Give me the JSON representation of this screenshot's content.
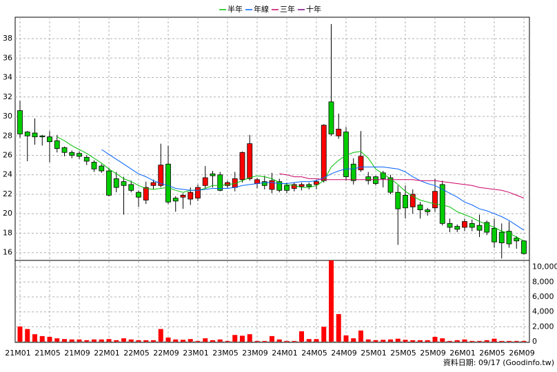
{
  "chart_data": {
    "type": "candlestick",
    "categories": [
      "21M01",
      null,
      null,
      null,
      "21M05",
      null,
      null,
      null,
      "21M09",
      null,
      null,
      null,
      "22M01",
      null,
      null,
      null,
      "22M05",
      null,
      null,
      null,
      "22M09",
      null,
      null,
      null,
      "23M01",
      null,
      null,
      null,
      "23M05",
      null,
      null,
      null,
      "23M09",
      null,
      null,
      null,
      "24M01",
      null,
      null,
      null,
      "24M05",
      null,
      null,
      null,
      "24M09",
      null,
      null,
      null,
      "25M01",
      null,
      null,
      null,
      "25M05",
      null,
      null,
      null,
      "25M09",
      null,
      null,
      null,
      "26M01",
      null,
      null,
      null,
      "26M05",
      null,
      null,
      null,
      "26M09"
    ],
    "open": [
      30.6,
      28.4,
      28.3,
      28.0,
      27.9,
      27.5,
      26.8,
      26.3,
      26.2,
      25.8,
      25.3,
      24.9,
      24.4,
      23.6,
      23.3,
      23.0,
      22.2,
      21.4,
      22.9,
      22.9,
      25.1,
      21.6,
      21.7,
      21.5,
      21.6,
      22.9,
      24.1,
      24.0,
      22.9,
      22.7,
      23.5,
      23.6,
      23.1,
      23.3,
      22.5,
      23.3,
      22.9,
      22.6,
      22.8,
      23.0,
      23.0,
      23.4,
      31.5,
      28.0,
      28.4,
      25.1,
      24.5,
      23.8,
      23.8,
      24.2,
      23.7,
      22.2,
      21.9,
      20.7,
      20.9,
      20.4,
      20.6,
      23.0,
      19.0,
      18.7,
      18.6,
      19.0,
      18.8,
      19.1,
      18.5,
      18.1,
      18.2,
      17.5,
      17.2
    ],
    "high": [
      31.6,
      28.5,
      29.8,
      28.1,
      28.5,
      28.1,
      26.9,
      26.5,
      26.4,
      26.0,
      25.5,
      25.1,
      24.7,
      24.3,
      23.8,
      23.4,
      22.4,
      23.3,
      23.5,
      27.2,
      27.0,
      21.8,
      22.1,
      22.7,
      23.0,
      24.9,
      24.4,
      24.3,
      23.4,
      24.3,
      26.4,
      28.1,
      23.7,
      23.9,
      24.2,
      23.6,
      23.2,
      23.2,
      23.2,
      23.2,
      23.5,
      29.2,
      39.5,
      30.3,
      28.9,
      25.7,
      28.5,
      24.3,
      23.9,
      24.4,
      24.0,
      22.9,
      22.9,
      22.5,
      21.2,
      20.6,
      23.6,
      23.4,
      19.5,
      18.9,
      19.5,
      19.4,
      19.9,
      19.3,
      19.5,
      19.0,
      19.2,
      17.7,
      17.3
    ],
    "low": [
      27.8,
      25.4,
      27.1,
      27.0,
      25.3,
      26.3,
      25.9,
      25.7,
      25.6,
      25.0,
      24.3,
      24.2,
      21.8,
      22.2,
      19.9,
      22.2,
      20.7,
      21.0,
      22.5,
      22.7,
      21.0,
      20.2,
      20.5,
      20.9,
      21.3,
      22.6,
      22.7,
      22.3,
      22.6,
      22.3,
      23.2,
      23.4,
      22.6,
      22.5,
      22.1,
      22.2,
      22.1,
      22.3,
      22.4,
      22.5,
      22.5,
      23.2,
      28.0,
      27.7,
      23.4,
      23.0,
      24.3,
      23.0,
      22.9,
      22.7,
      22.0,
      16.8,
      19.5,
      20.0,
      19.5,
      19.8,
      20.2,
      18.8,
      18.1,
      18.1,
      18.2,
      18.2,
      17.6,
      17.8,
      16.5,
      15.4,
      16.5,
      16.4,
      15.8
    ],
    "close": [
      28.2,
      28.0,
      27.9,
      27.9,
      27.4,
      26.7,
      26.3,
      26.0,
      25.9,
      25.4,
      24.6,
      24.4,
      21.9,
      22.7,
      22.9,
      22.4,
      21.7,
      22.7,
      23.2,
      25.0,
      21.2,
      21.3,
      21.9,
      22.2,
      22.7,
      23.7,
      23.9,
      22.4,
      23.2,
      23.6,
      26.3,
      27.2,
      23.5,
      22.9,
      23.4,
      22.4,
      22.4,
      23.0,
      23.0,
      22.8,
      23.3,
      29.1,
      28.2,
      28.7,
      23.8,
      23.4,
      25.9,
      23.4,
      23.1,
      23.6,
      22.2,
      20.5,
      20.6,
      22.0,
      20.4,
      20.2,
      22.3,
      19.0,
      18.6,
      18.4,
      19.2,
      18.6,
      18.3,
      18.1,
      17.1,
      17.0,
      16.9,
      17.2,
      15.9
    ],
    "up_color": "#ff0000",
    "down_color": "#00cc00",
    "ylim": [
      15.2,
      40.2
    ],
    "yticks": [
      16,
      18,
      20,
      22,
      24,
      26,
      28,
      30,
      32,
      34,
      36,
      38
    ],
    "grid": true,
    "ma_series": [
      {
        "name": "半年",
        "color": "#00c000",
        "values": [
          null,
          null,
          null,
          null,
          null,
          27.9,
          27.5,
          27.0,
          26.6,
          26.2,
          25.7,
          25.2,
          24.6,
          24.1,
          23.6,
          23.3,
          22.9,
          22.6,
          22.5,
          22.6,
          22.7,
          22.4,
          22.2,
          22.4,
          22.4,
          22.6,
          22.9,
          22.9,
          23.0,
          23.1,
          23.4,
          23.7,
          23.9,
          23.8,
          23.6,
          23.2,
          23.0,
          22.9,
          22.7,
          22.7,
          22.9,
          23.4,
          24.8,
          25.5,
          26.0,
          26.3,
          26.4,
          25.7,
          24.6,
          24.1,
          23.6,
          23.0,
          22.3,
          21.8,
          21.4,
          21.2,
          21.0,
          20.9,
          20.7,
          20.2,
          19.9,
          19.6,
          19.2,
          18.9,
          18.6,
          18.2,
          18.0,
          17.6,
          17.2
        ]
      },
      {
        "name": "年線",
        "color": "#0060ff",
        "values": [
          null,
          null,
          null,
          null,
          null,
          null,
          null,
          null,
          null,
          null,
          null,
          26.6,
          26.1,
          25.6,
          25.1,
          24.6,
          24.1,
          23.8,
          23.4,
          23.1,
          22.9,
          22.6,
          22.5,
          22.4,
          22.4,
          22.5,
          22.6,
          22.6,
          22.6,
          22.7,
          22.9,
          23.0,
          23.1,
          23.2,
          23.2,
          23.1,
          23.1,
          23.2,
          23.3,
          23.3,
          23.4,
          23.7,
          24.1,
          24.4,
          24.6,
          24.6,
          24.8,
          24.8,
          24.8,
          24.8,
          24.7,
          24.6,
          24.3,
          23.8,
          23.4,
          23.1,
          22.9,
          22.5,
          22.1,
          21.7,
          21.2,
          20.9,
          20.5,
          20.3,
          20.0,
          19.7,
          19.3,
          18.8,
          18.3
        ]
      },
      {
        "name": "三年",
        "color": "#cc0066",
        "values": [
          null,
          null,
          null,
          null,
          null,
          null,
          null,
          null,
          null,
          null,
          null,
          null,
          null,
          null,
          null,
          null,
          null,
          null,
          null,
          null,
          null,
          null,
          null,
          null,
          null,
          null,
          null,
          null,
          null,
          null,
          null,
          null,
          null,
          null,
          null,
          24.1,
          24.0,
          23.8,
          23.8,
          23.6,
          23.6,
          23.5,
          23.5,
          23.5,
          23.5,
          23.5,
          23.5,
          23.5,
          23.5,
          23.5,
          23.5,
          23.5,
          23.5,
          23.5,
          23.4,
          23.4,
          23.4,
          23.3,
          23.2,
          23.1,
          23.0,
          22.9,
          22.7,
          22.6,
          22.5,
          22.4,
          22.2,
          21.9,
          21.6
        ]
      },
      {
        "name": "十年",
        "color": "#800080"
      }
    ],
    "volume": {
      "color": "#ff0000",
      "ylim": [
        0,
        10900
      ],
      "yticks": [
        0,
        {
          "value": 2000,
          "label": "2,000"
        },
        {
          "value": 4000,
          "label": "4,000"
        },
        {
          "value": 6000,
          "label": "6,000"
        },
        {
          "value": 8000,
          "label": "8,000"
        },
        {
          "value": 10000,
          "label": "10,000"
        }
      ],
      "values": [
        2040,
        1700,
        1000,
        750,
        650,
        450,
        350,
        300,
        300,
        200,
        300,
        300,
        350,
        200,
        450,
        300,
        200,
        200,
        200,
        1700,
        550,
        300,
        250,
        350,
        100,
        450,
        200,
        300,
        100,
        900,
        800,
        1000,
        100,
        100,
        750,
        300,
        100,
        100,
        1400,
        350,
        350,
        2000,
        10900,
        3700,
        850,
        450,
        1500,
        300,
        200,
        250,
        300,
        400,
        250,
        200,
        200,
        200,
        650,
        450,
        100,
        200,
        300,
        100,
        100,
        200,
        400,
        100,
        100,
        100,
        100
      ]
    },
    "footer": "資料日期: 09/17 (Goodinfo.tw)"
  }
}
